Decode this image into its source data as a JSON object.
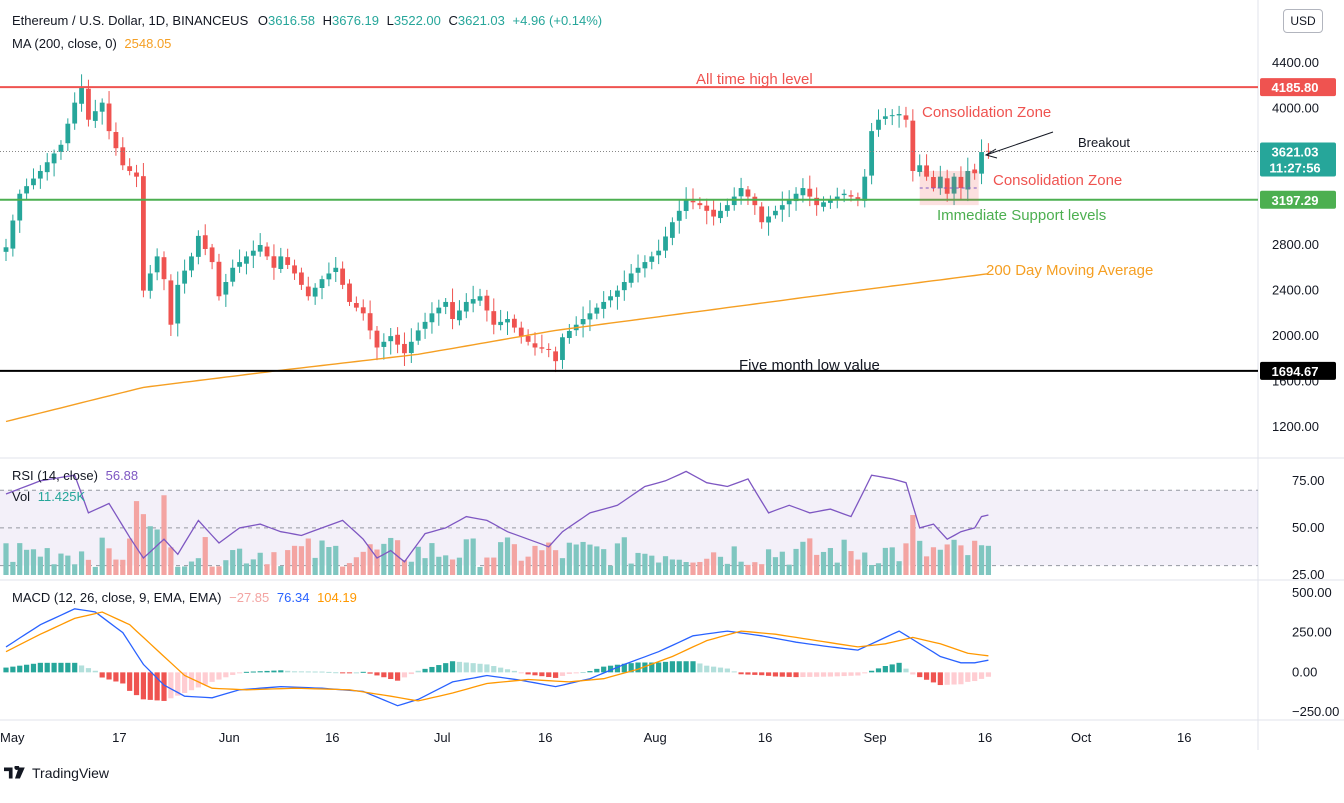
{
  "header": {
    "symbol": "Ethereum / U.S. Dollar, 1D, BINANCEUS",
    "o_label": "O",
    "o_value": "3616.58",
    "h_label": "H",
    "h_value": "3676.19",
    "l_label": "L",
    "l_value": "3522.00",
    "c_label": "C",
    "c_value": "3621.03",
    "change": "+4.96 (+0.14%)",
    "ma_label": "MA (200, close, 0)",
    "ma_value": "2548.05",
    "rsi_label": "RSI (14, close)",
    "rsi_value": "56.88",
    "vol_label": "Vol",
    "vol_value": "11.425K",
    "macd_label": "MACD (12, 26, close, 9, EMA, EMA)",
    "macd_hist": "−27.85",
    "macd_line": "76.34",
    "macd_signal": "104.19"
  },
  "currency_button": "USD",
  "brand": "TradingView",
  "colors": {
    "up": "#26a69a",
    "down": "#ef5350",
    "ma": "#f59f23",
    "rsi": "#7e57c2",
    "macd": "#2962ff",
    "signal": "#ff9800",
    "ath": "#ef5350",
    "support": "#4caf50",
    "low": "#000000",
    "vol_up": "#7fc6c0",
    "vol_down": "#f3a4a2"
  },
  "chart_data": [
    {
      "type": "candlestick",
      "title": "Ethereum / U.S. Dollar, 1D, BINANCEUS",
      "x_ticks": [
        "May",
        "17",
        "Jun",
        "16",
        "Jul",
        "16",
        "Aug",
        "16",
        "Sep",
        "16",
        "Oct",
        "16"
      ],
      "ylim": [
        1000,
        4600
      ],
      "y_ticks": [
        4400,
        4000,
        3600,
        3200,
        2800,
        2400,
        2000,
        1600,
        1200
      ],
      "y_tick_labels": [
        "4400.00",
        "4000.00",
        "3600.00",
        "3200.00",
        "2800.00",
        "2400.00",
        "2000.00",
        "1600.00",
        "1200.00"
      ],
      "close_anchors": [
        {
          "d": 0,
          "v": 2780
        },
        {
          "d": 2,
          "v": 3250
        },
        {
          "d": 5,
          "v": 3450
        },
        {
          "d": 8,
          "v": 3680
        },
        {
          "d": 10,
          "v": 4050
        },
        {
          "d": 11,
          "v": 4180
        },
        {
          "d": 12,
          "v": 3900
        },
        {
          "d": 14,
          "v": 4050
        },
        {
          "d": 15,
          "v": 3800
        },
        {
          "d": 17,
          "v": 3500
        },
        {
          "d": 19,
          "v": 3400
        },
        {
          "d": 20,
          "v": 2400
        },
        {
          "d": 22,
          "v": 2700
        },
        {
          "d": 23,
          "v": 2500
        },
        {
          "d": 24,
          "v": 2100
        },
        {
          "d": 25,
          "v": 2450
        },
        {
          "d": 27,
          "v": 2700
        },
        {
          "d": 28,
          "v": 2880
        },
        {
          "d": 30,
          "v": 2650
        },
        {
          "d": 31,
          "v": 2350
        },
        {
          "d": 33,
          "v": 2600
        },
        {
          "d": 35,
          "v": 2700
        },
        {
          "d": 37,
          "v": 2800
        },
        {
          "d": 39,
          "v": 2600
        },
        {
          "d": 40,
          "v": 2700
        },
        {
          "d": 42,
          "v": 2550
        },
        {
          "d": 44,
          "v": 2350
        },
        {
          "d": 46,
          "v": 2500
        },
        {
          "d": 48,
          "v": 2600
        },
        {
          "d": 50,
          "v": 2300
        },
        {
          "d": 52,
          "v": 2200
        },
        {
          "d": 54,
          "v": 1900
        },
        {
          "d": 56,
          "v": 2000
        },
        {
          "d": 58,
          "v": 1850
        },
        {
          "d": 60,
          "v": 2050
        },
        {
          "d": 62,
          "v": 2200
        },
        {
          "d": 64,
          "v": 2300
        },
        {
          "d": 65,
          "v": 2150
        },
        {
          "d": 67,
          "v": 2300
        },
        {
          "d": 69,
          "v": 2350
        },
        {
          "d": 71,
          "v": 2100
        },
        {
          "d": 73,
          "v": 2150
        },
        {
          "d": 75,
          "v": 2000
        },
        {
          "d": 77,
          "v": 1900
        },
        {
          "d": 79,
          "v": 1880
        },
        {
          "d": 80,
          "v": 1780
        },
        {
          "d": 81,
          "v": 1990
        },
        {
          "d": 83,
          "v": 2100
        },
        {
          "d": 85,
          "v": 2200
        },
        {
          "d": 87,
          "v": 2300
        },
        {
          "d": 89,
          "v": 2400
        },
        {
          "d": 91,
          "v": 2550
        },
        {
          "d": 93,
          "v": 2650
        },
        {
          "d": 95,
          "v": 2750
        },
        {
          "d": 97,
          "v": 3000
        },
        {
          "d": 99,
          "v": 3200
        },
        {
          "d": 101,
          "v": 3150
        },
        {
          "d": 103,
          "v": 3050
        },
        {
          "d": 105,
          "v": 3150
        },
        {
          "d": 107,
          "v": 3300
        },
        {
          "d": 109,
          "v": 3150
        },
        {
          "d": 110,
          "v": 3000
        },
        {
          "d": 112,
          "v": 3100
        },
        {
          "d": 114,
          "v": 3200
        },
        {
          "d": 116,
          "v": 3300
        },
        {
          "d": 118,
          "v": 3150
        },
        {
          "d": 120,
          "v": 3200
        },
        {
          "d": 122,
          "v": 3250
        },
        {
          "d": 124,
          "v": 3200
        },
        {
          "d": 125,
          "v": 3400
        },
        {
          "d": 126,
          "v": 3800
        },
        {
          "d": 127,
          "v": 3900
        },
        {
          "d": 128,
          "v": 3930
        },
        {
          "d": 130,
          "v": 3950
        },
        {
          "d": 131,
          "v": 3900
        },
        {
          "d": 132,
          "v": 3450
        },
        {
          "d": 133,
          "v": 3500
        },
        {
          "d": 134,
          "v": 3400
        },
        {
          "d": 135,
          "v": 3300
        },
        {
          "d": 136,
          "v": 3400
        },
        {
          "d": 137,
          "v": 3250
        },
        {
          "d": 138,
          "v": 3400
        },
        {
          "d": 139,
          "v": 3300
        },
        {
          "d": 140,
          "v": 3450
        },
        {
          "d": 141,
          "v": 3430
        },
        {
          "d": 142,
          "v": 3616
        },
        {
          "d": 143,
          "v": 3621
        }
      ],
      "ma200_anchors": [
        {
          "d": 0,
          "v": 1250
        },
        {
          "d": 20,
          "v": 1550
        },
        {
          "d": 40,
          "v": 1700
        },
        {
          "d": 60,
          "v": 1840
        },
        {
          "d": 80,
          "v": 2050
        },
        {
          "d": 100,
          "v": 2210
        },
        {
          "d": 120,
          "v": 2370
        },
        {
          "d": 143,
          "v": 2548.05
        }
      ],
      "levels": [
        {
          "name": "ath",
          "value": 4185.8,
          "label": "4185.80",
          "text": "All time high level"
        },
        {
          "name": "current",
          "value": 3621.03,
          "label": "3621.03",
          "sub": "11:27:56"
        },
        {
          "name": "support",
          "value": 3197.29,
          "label": "3197.29",
          "text": "Immediate Support levels"
        },
        {
          "name": "low",
          "value": 1694.67,
          "label": "1694.67",
          "text": "Five month low value"
        }
      ],
      "annotations": [
        {
          "text": "Consolidation Zone"
        },
        {
          "text": "Consolidation Zone"
        },
        {
          "text": "Breakout"
        },
        {
          "text": "200 Day Moving Average"
        }
      ]
    },
    {
      "type": "line",
      "title": "RSI (14, close)",
      "ylim": [
        25,
        85
      ],
      "y_ticks": [
        75,
        50,
        25
      ],
      "y_tick_labels": [
        "75.00",
        "50.00",
        "25.00"
      ],
      "band": [
        30,
        70
      ],
      "anchors": [
        {
          "d": 0,
          "v": 68
        },
        {
          "d": 5,
          "v": 75
        },
        {
          "d": 10,
          "v": 78
        },
        {
          "d": 12,
          "v": 58
        },
        {
          "d": 15,
          "v": 63
        },
        {
          "d": 18,
          "v": 45
        },
        {
          "d": 20,
          "v": 34
        },
        {
          "d": 23,
          "v": 44
        },
        {
          "d": 25,
          "v": 36
        },
        {
          "d": 28,
          "v": 54
        },
        {
          "d": 31,
          "v": 42
        },
        {
          "d": 34,
          "v": 50
        },
        {
          "d": 37,
          "v": 52
        },
        {
          "d": 40,
          "v": 48
        },
        {
          "d": 43,
          "v": 46
        },
        {
          "d": 46,
          "v": 50
        },
        {
          "d": 49,
          "v": 54
        },
        {
          "d": 52,
          "v": 44
        },
        {
          "d": 54,
          "v": 34
        },
        {
          "d": 56,
          "v": 38
        },
        {
          "d": 58,
          "v": 32
        },
        {
          "d": 61,
          "v": 47
        },
        {
          "d": 64,
          "v": 50
        },
        {
          "d": 67,
          "v": 56
        },
        {
          "d": 70,
          "v": 54
        },
        {
          "d": 73,
          "v": 48
        },
        {
          "d": 76,
          "v": 44
        },
        {
          "d": 79,
          "v": 40
        },
        {
          "d": 81,
          "v": 48
        },
        {
          "d": 85,
          "v": 58
        },
        {
          "d": 89,
          "v": 62
        },
        {
          "d": 93,
          "v": 72
        },
        {
          "d": 96,
          "v": 75
        },
        {
          "d": 99,
          "v": 80
        },
        {
          "d": 102,
          "v": 74
        },
        {
          "d": 105,
          "v": 72
        },
        {
          "d": 108,
          "v": 76
        },
        {
          "d": 111,
          "v": 58
        },
        {
          "d": 114,
          "v": 62
        },
        {
          "d": 117,
          "v": 58
        },
        {
          "d": 120,
          "v": 60
        },
        {
          "d": 123,
          "v": 56
        },
        {
          "d": 126,
          "v": 78
        },
        {
          "d": 129,
          "v": 76
        },
        {
          "d": 131,
          "v": 74
        },
        {
          "d": 133,
          "v": 50
        },
        {
          "d": 135,
          "v": 52
        },
        {
          "d": 137,
          "v": 44
        },
        {
          "d": 139,
          "v": 48
        },
        {
          "d": 141,
          "v": 50
        },
        {
          "d": 142,
          "v": 56
        },
        {
          "d": 143,
          "v": 56.88
        }
      ]
    },
    {
      "type": "bar",
      "title": "Vol",
      "last_value": "11.425K"
    },
    {
      "type": "macd",
      "title": "MACD (12, 26, close, 9, EMA, EMA)",
      "ylim": [
        -300,
        550
      ],
      "y_ticks": [
        500,
        250,
        0,
        -250
      ],
      "y_tick_labels": [
        "500.00",
        "250.00",
        "0.00",
        "−250.00"
      ],
      "macd_anchors": [
        {
          "d": 0,
          "v": 160
        },
        {
          "d": 5,
          "v": 300
        },
        {
          "d": 10,
          "v": 400
        },
        {
          "d": 13,
          "v": 380
        },
        {
          "d": 17,
          "v": 250
        },
        {
          "d": 20,
          "v": 50
        },
        {
          "d": 23,
          "v": -80
        },
        {
          "d": 26,
          "v": -150
        },
        {
          "d": 30,
          "v": -160
        },
        {
          "d": 34,
          "v": -110
        },
        {
          "d": 40,
          "v": -90
        },
        {
          "d": 46,
          "v": -100
        },
        {
          "d": 52,
          "v": -120
        },
        {
          "d": 57,
          "v": -210
        },
        {
          "d": 60,
          "v": -170
        },
        {
          "d": 65,
          "v": -60
        },
        {
          "d": 70,
          "v": -20
        },
        {
          "d": 75,
          "v": -50
        },
        {
          "d": 80,
          "v": -90
        },
        {
          "d": 85,
          "v": -40
        },
        {
          "d": 90,
          "v": 50
        },
        {
          "d": 95,
          "v": 130
        },
        {
          "d": 100,
          "v": 230
        },
        {
          "d": 105,
          "v": 260
        },
        {
          "d": 110,
          "v": 230
        },
        {
          "d": 115,
          "v": 190
        },
        {
          "d": 120,
          "v": 160
        },
        {
          "d": 124,
          "v": 140
        },
        {
          "d": 127,
          "v": 200
        },
        {
          "d": 130,
          "v": 260
        },
        {
          "d": 133,
          "v": 180
        },
        {
          "d": 136,
          "v": 100
        },
        {
          "d": 139,
          "v": 60
        },
        {
          "d": 141,
          "v": 60
        },
        {
          "d": 143,
          "v": 76.34
        }
      ],
      "signal_anchors": [
        {
          "d": 0,
          "v": 130
        },
        {
          "d": 5,
          "v": 240
        },
        {
          "d": 10,
          "v": 340
        },
        {
          "d": 14,
          "v": 380
        },
        {
          "d": 18,
          "v": 300
        },
        {
          "d": 22,
          "v": 140
        },
        {
          "d": 26,
          "v": -20
        },
        {
          "d": 30,
          "v": -100
        },
        {
          "d": 35,
          "v": -110
        },
        {
          "d": 42,
          "v": -100
        },
        {
          "d": 50,
          "v": -110
        },
        {
          "d": 56,
          "v": -150
        },
        {
          "d": 60,
          "v": -180
        },
        {
          "d": 65,
          "v": -130
        },
        {
          "d": 70,
          "v": -70
        },
        {
          "d": 76,
          "v": -45
        },
        {
          "d": 82,
          "v": -60
        },
        {
          "d": 87,
          "v": -40
        },
        {
          "d": 92,
          "v": 20
        },
        {
          "d": 97,
          "v": 100
        },
        {
          "d": 102,
          "v": 200
        },
        {
          "d": 107,
          "v": 260
        },
        {
          "d": 112,
          "v": 240
        },
        {
          "d": 118,
          "v": 200
        },
        {
          "d": 124,
          "v": 160
        },
        {
          "d": 128,
          "v": 180
        },
        {
          "d": 132,
          "v": 220
        },
        {
          "d": 136,
          "v": 180
        },
        {
          "d": 140,
          "v": 120
        },
        {
          "d": 143,
          "v": 104.19
        }
      ]
    }
  ]
}
